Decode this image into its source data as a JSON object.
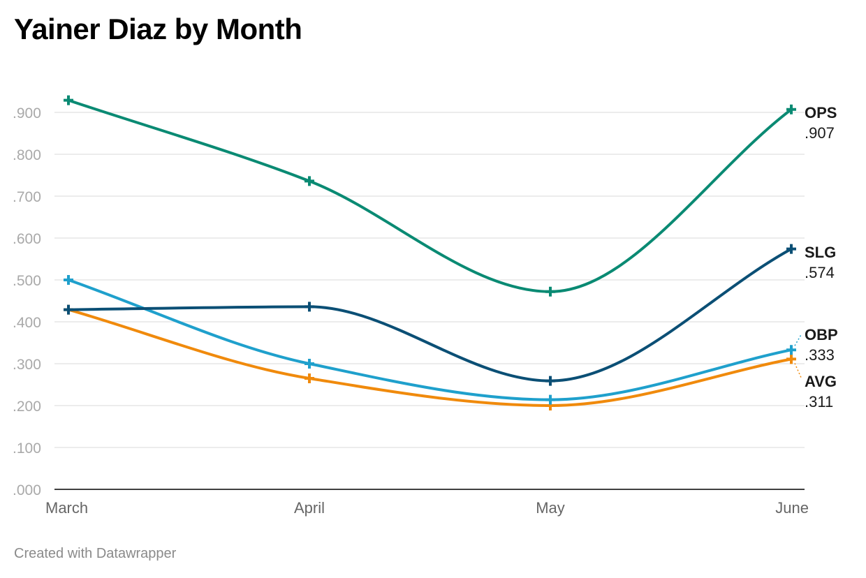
{
  "chart_data": {
    "type": "line",
    "title": "Yainer Diaz by Month",
    "xlabel": "",
    "ylabel": "",
    "categories": [
      "March",
      "April",
      "May",
      "June"
    ],
    "ylim": [
      0,
      0.9
    ],
    "yticks": [
      0,
      0.1,
      0.2,
      0.3,
      0.4,
      0.5,
      0.6,
      0.7,
      0.8,
      0.9
    ],
    "ytick_labels": [
      ".000",
      ".100",
      ".200",
      ".300",
      ".400",
      ".500",
      ".600",
      ".700",
      ".800",
      ".900"
    ],
    "grid": true,
    "legend": "direct labels at right end of lines",
    "series": [
      {
        "name": "OPS",
        "values": [
          0.929,
          0.736,
          0.472,
          0.907
        ],
        "end_label": ".907",
        "color": "#0a8a73"
      },
      {
        "name": "SLG",
        "values": [
          0.429,
          0.436,
          0.259,
          0.574
        ],
        "end_label": ".574",
        "color": "#0b4f75"
      },
      {
        "name": "OBP",
        "values": [
          0.5,
          0.3,
          0.214,
          0.333
        ],
        "end_label": ".333",
        "color": "#1fa0cc"
      },
      {
        "name": "AVG",
        "values": [
          0.429,
          0.265,
          0.2,
          0.311
        ],
        "end_label": ".311",
        "color": "#f08a0c"
      }
    ]
  },
  "footer": {
    "credit": "Created with Datawrapper"
  },
  "colors": {
    "grid": "#e1e1e1",
    "axis": "#000000",
    "tick_text": "#a9a9a9",
    "category_text": "#666666"
  }
}
